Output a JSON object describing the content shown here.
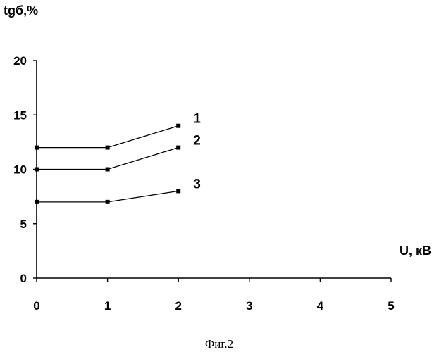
{
  "chart_data": {
    "type": "line",
    "ylabel": "tgб,%",
    "xlabel": "U, кВ",
    "xlim": [
      0,
      5
    ],
    "ylim": [
      0,
      20
    ],
    "x_ticks": [
      0,
      1,
      2,
      3,
      4,
      5
    ],
    "y_ticks": [
      0,
      5,
      10,
      15,
      20
    ],
    "grid": false,
    "legend": "none",
    "x": [
      0,
      1,
      2
    ],
    "series": [
      {
        "name": "1",
        "values": [
          12,
          12,
          14
        ]
      },
      {
        "name": "2",
        "values": [
          10,
          10,
          12
        ]
      },
      {
        "name": "3",
        "values": [
          7,
          7,
          8
        ]
      }
    ]
  },
  "caption": "Фиг.2"
}
